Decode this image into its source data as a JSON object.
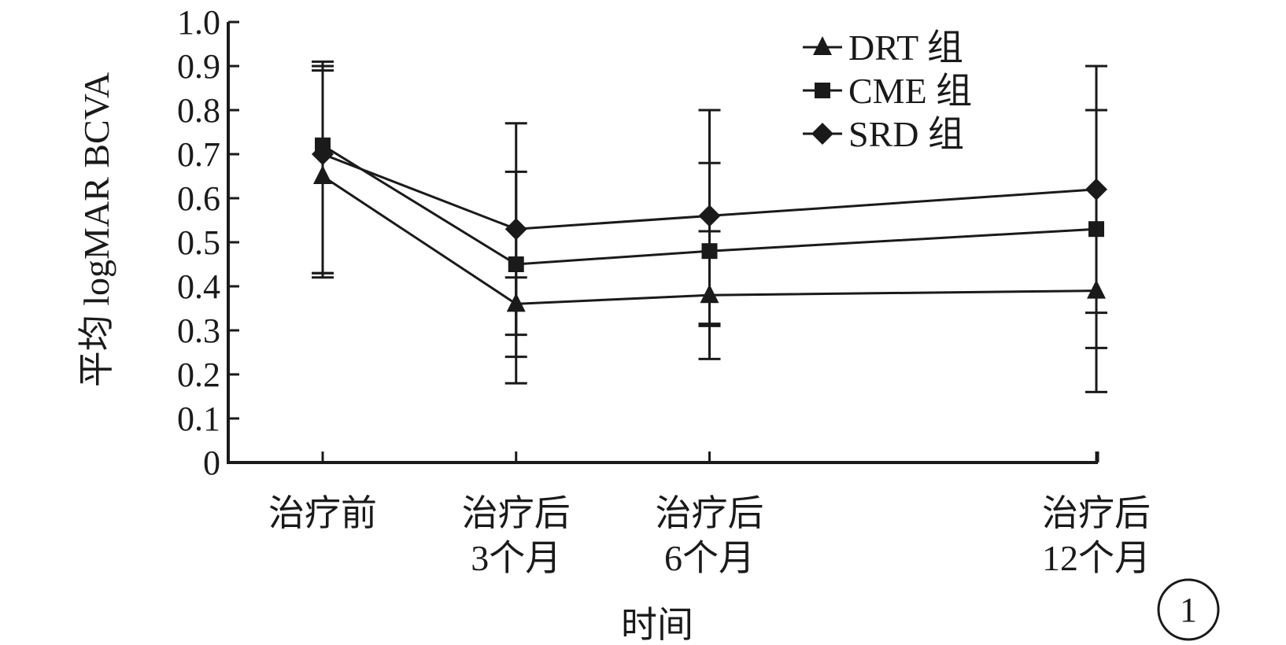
{
  "chart_data": {
    "type": "line",
    "ylabel": "平均 logMAR BCVA",
    "xlabel": "时间",
    "ylim": [
      0,
      1.0
    ],
    "yticks": [
      "0",
      "0.1",
      "0.2",
      "0.3",
      "0.4",
      "0.5",
      "0.6",
      "0.7",
      "0.8",
      "0.9",
      "1.0"
    ],
    "categories": [
      {
        "line1": "治疗前",
        "line2": ""
      },
      {
        "line1": "治疗后",
        "line2": "3个月"
      },
      {
        "line1": "治疗后",
        "line2": "6个月"
      },
      {
        "line1": "治疗后",
        "line2": "12个月"
      }
    ],
    "x_months": [
      0,
      3,
      6,
      12
    ],
    "series": [
      {
        "name": "DRT 组",
        "marker": "triangle",
        "values": [
          0.65,
          0.36,
          0.38,
          0.39
        ],
        "err_low": [
          0.23,
          0.18,
          0.145,
          0.23
        ],
        "err_high": [
          0.26,
          0.06,
          0.145,
          0.41
        ]
      },
      {
        "name": "CME 组",
        "marker": "square",
        "values": [
          0.72,
          0.45,
          0.48,
          0.53
        ],
        "err_low": [
          0.29,
          0.21,
          0.165,
          0.27
        ],
        "err_high": [
          0.17,
          0.21,
          0.2,
          0.27
        ]
      },
      {
        "name": "SRD 组",
        "marker": "diamond",
        "values": [
          0.7,
          0.53,
          0.56,
          0.62
        ],
        "err_low": [
          0.27,
          0.24,
          0.25,
          0.28
        ],
        "err_high": [
          0.2,
          0.24,
          0.24,
          0.28
        ]
      }
    ],
    "legend_position": "top-right",
    "grid": false,
    "color": "#1a1a1a"
  },
  "figure_label": "1"
}
